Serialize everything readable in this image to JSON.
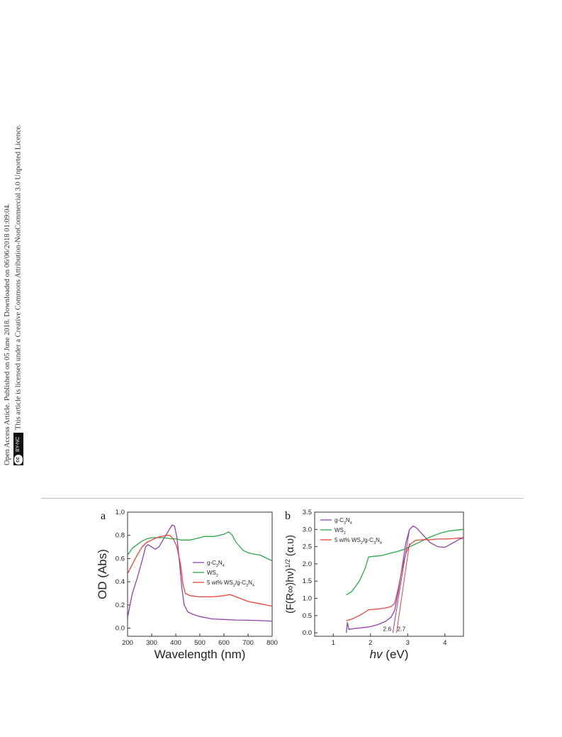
{
  "side_banner": {
    "line1": "Open Access Article. Published on 05 June 2018. Downloaded on 06/06/2018 01:09:04.",
    "line2": "This article is licensed under a Creative Commons Attribution-NonCommercial 3.0 Unported Licence.",
    "badge_cc": "cc",
    "badge_label": "BY-NC"
  },
  "chart_data": [
    {
      "type": "line",
      "panel_label": "a",
      "xlabel": "Wavelength (nm)",
      "ylabel": "OD (Abs)",
      "xlim": [
        200,
        800
      ],
      "ylim": [
        -0.07,
        1.0
      ],
      "xticks": [
        200,
        300,
        400,
        500,
        600,
        700,
        800
      ],
      "yticks": [
        0.0,
        0.2,
        0.4,
        0.6,
        0.8,
        1.0
      ],
      "xtick_labels": [
        "200",
        "300",
        "400",
        "500",
        "600",
        "700",
        "800"
      ],
      "ytick_labels": [
        "0.0",
        "0.2",
        "0.4",
        "0.6",
        "0.8",
        "1.0"
      ],
      "legend_position": "center-right",
      "series": [
        {
          "name": "g-C3N4",
          "legend_parts": [
            "g-C",
            "3",
            "N",
            "4"
          ],
          "color": "#8e44ad",
          "points": [
            [
              200,
              0.09
            ],
            [
              210,
              0.2
            ],
            [
              220,
              0.3
            ],
            [
              240,
              0.43
            ],
            [
              260,
              0.58
            ],
            [
              275,
              0.7
            ],
            [
              285,
              0.72
            ],
            [
              300,
              0.7
            ],
            [
              315,
              0.68
            ],
            [
              330,
              0.7
            ],
            [
              350,
              0.77
            ],
            [
              370,
              0.84
            ],
            [
              385,
              0.89
            ],
            [
              395,
              0.88
            ],
            [
              405,
              0.78
            ],
            [
              415,
              0.58
            ],
            [
              425,
              0.35
            ],
            [
              435,
              0.2
            ],
            [
              450,
              0.14
            ],
            [
              470,
              0.12
            ],
            [
              500,
              0.1
            ],
            [
              550,
              0.08
            ],
            [
              600,
              0.075
            ],
            [
              650,
              0.07
            ],
            [
              700,
              0.068
            ],
            [
              750,
              0.065
            ],
            [
              800,
              0.06
            ]
          ]
        },
        {
          "name": "WS2",
          "legend_parts": [
            "WS",
            "2"
          ],
          "color": "#2ba84a",
          "points": [
            [
              200,
              0.63
            ],
            [
              220,
              0.69
            ],
            [
              240,
              0.72
            ],
            [
              260,
              0.75
            ],
            [
              280,
              0.77
            ],
            [
              300,
              0.78
            ],
            [
              330,
              0.78
            ],
            [
              350,
              0.78
            ],
            [
              380,
              0.77
            ],
            [
              400,
              0.77
            ],
            [
              420,
              0.76
            ],
            [
              440,
              0.76
            ],
            [
              460,
              0.76
            ],
            [
              480,
              0.77
            ],
            [
              500,
              0.78
            ],
            [
              520,
              0.79
            ],
            [
              540,
              0.79
            ],
            [
              560,
              0.79
            ],
            [
              580,
              0.8
            ],
            [
              600,
              0.81
            ],
            [
              620,
              0.83
            ],
            [
              635,
              0.8
            ],
            [
              650,
              0.74
            ],
            [
              680,
              0.67
            ],
            [
              700,
              0.65
            ],
            [
              720,
              0.64
            ],
            [
              750,
              0.63
            ],
            [
              780,
              0.6
            ],
            [
              800,
              0.58
            ]
          ]
        },
        {
          "name": "5 wt% WS2/g-C3N4",
          "legend_parts": [
            "5 wt% WS",
            "2",
            "/g-C",
            "3",
            "N",
            "4"
          ],
          "color": "#e8443a",
          "points": [
            [
              200,
              0.47
            ],
            [
              220,
              0.55
            ],
            [
              240,
              0.63
            ],
            [
              260,
              0.7
            ],
            [
              280,
              0.74
            ],
            [
              300,
              0.76
            ],
            [
              320,
              0.78
            ],
            [
              340,
              0.79
            ],
            [
              360,
              0.8
            ],
            [
              375,
              0.8
            ],
            [
              390,
              0.77
            ],
            [
              405,
              0.7
            ],
            [
              420,
              0.55
            ],
            [
              430,
              0.38
            ],
            [
              440,
              0.3
            ],
            [
              460,
              0.28
            ],
            [
              500,
              0.27
            ],
            [
              550,
              0.27
            ],
            [
              600,
              0.28
            ],
            [
              625,
              0.29
            ],
            [
              650,
              0.27
            ],
            [
              700,
              0.23
            ],
            [
              750,
              0.21
            ],
            [
              800,
              0.19
            ]
          ]
        }
      ]
    },
    {
      "type": "line",
      "panel_label": "b",
      "xlabel": "hv (eV)",
      "xlabel_parts": [
        "hv",
        " (eV)"
      ],
      "ylabel": "(F(R∞)hv)1/2 (α.υ)",
      "ylabel_parts": [
        "(F(R∞)hν)",
        "1/2",
        " (α.υ)"
      ],
      "xlim": [
        0.5,
        4.5
      ],
      "ylim": [
        -0.1,
        3.5
      ],
      "xticks": [
        1,
        2,
        3,
        4
      ],
      "yticks": [
        0.0,
        0.5,
        1.0,
        1.5,
        2.0,
        2.5,
        3.0,
        3.5
      ],
      "xtick_labels": [
        "1",
        "2",
        "3",
        "4"
      ],
      "ytick_labels": [
        "0.0",
        "0.5",
        "1.0",
        "1.5",
        "2.0",
        "2.5",
        "3.0",
        "3.5"
      ],
      "legend_position": "top-left",
      "annotations": [
        {
          "text": "2.6",
          "x": 2.45,
          "y": 0.05
        },
        {
          "text": "2.7",
          "x": 2.83,
          "y": 0.05
        }
      ],
      "tangent_lines": [
        {
          "x": [
            2.6,
            3.05
          ],
          "y": [
            0.0,
            3.0
          ],
          "color": "#8e44ad"
        },
        {
          "x": [
            2.7,
            3.05
          ],
          "y": [
            0.0,
            2.6
          ],
          "color": "#e8443a"
        }
      ],
      "series": [
        {
          "name": "g-C3N4",
          "legend_parts": [
            "g-C",
            "3",
            "N",
            "4"
          ],
          "color": "#8e44ad",
          "points": [
            [
              1.35,
              0.0
            ],
            [
              1.38,
              0.3
            ],
            [
              1.42,
              0.1
            ],
            [
              1.6,
              0.13
            ],
            [
              1.8,
              0.15
            ],
            [
              2.0,
              0.18
            ],
            [
              2.2,
              0.24
            ],
            [
              2.4,
              0.33
            ],
            [
              2.55,
              0.45
            ],
            [
              2.65,
              0.65
            ],
            [
              2.75,
              1.2
            ],
            [
              2.85,
              1.9
            ],
            [
              2.95,
              2.6
            ],
            [
              3.05,
              3.0
            ],
            [
              3.15,
              3.1
            ],
            [
              3.25,
              3.03
            ],
            [
              3.4,
              2.85
            ],
            [
              3.6,
              2.62
            ],
            [
              3.8,
              2.5
            ],
            [
              4.0,
              2.48
            ],
            [
              4.2,
              2.6
            ],
            [
              4.4,
              2.72
            ],
            [
              4.5,
              2.75
            ]
          ]
        },
        {
          "name": "WS2",
          "legend_parts": [
            "WS",
            "2"
          ],
          "color": "#2ba84a",
          "points": [
            [
              1.35,
              1.1
            ],
            [
              1.5,
              1.2
            ],
            [
              1.7,
              1.5
            ],
            [
              1.85,
              1.85
            ],
            [
              1.95,
              2.2
            ],
            [
              2.1,
              2.22
            ],
            [
              2.3,
              2.24
            ],
            [
              2.5,
              2.3
            ],
            [
              2.7,
              2.35
            ],
            [
              2.9,
              2.42
            ],
            [
              3.1,
              2.52
            ],
            [
              3.3,
              2.62
            ],
            [
              3.5,
              2.73
            ],
            [
              3.7,
              2.82
            ],
            [
              3.9,
              2.9
            ],
            [
              4.1,
              2.95
            ],
            [
              4.3,
              2.98
            ],
            [
              4.5,
              3.0
            ]
          ]
        },
        {
          "name": "5 wt% WS2/g-C3N4",
          "legend_parts": [
            "5 wt% WS",
            "2",
            "/g-C",
            "3",
            "N",
            "4"
          ],
          "color": "#e8443a",
          "points": [
            [
              1.35,
              0.35
            ],
            [
              1.5,
              0.4
            ],
            [
              1.7,
              0.5
            ],
            [
              1.85,
              0.6
            ],
            [
              1.95,
              0.67
            ],
            [
              2.2,
              0.69
            ],
            [
              2.4,
              0.72
            ],
            [
              2.55,
              0.76
            ],
            [
              2.65,
              0.85
            ],
            [
              2.75,
              1.3
            ],
            [
              2.85,
              1.85
            ],
            [
              2.95,
              2.3
            ],
            [
              3.05,
              2.55
            ],
            [
              3.2,
              2.68
            ],
            [
              3.4,
              2.7
            ],
            [
              3.6,
              2.7
            ],
            [
              3.8,
              2.72
            ],
            [
              4.0,
              2.72
            ],
            [
              4.2,
              2.73
            ],
            [
              4.5,
              2.76
            ]
          ]
        }
      ]
    }
  ]
}
